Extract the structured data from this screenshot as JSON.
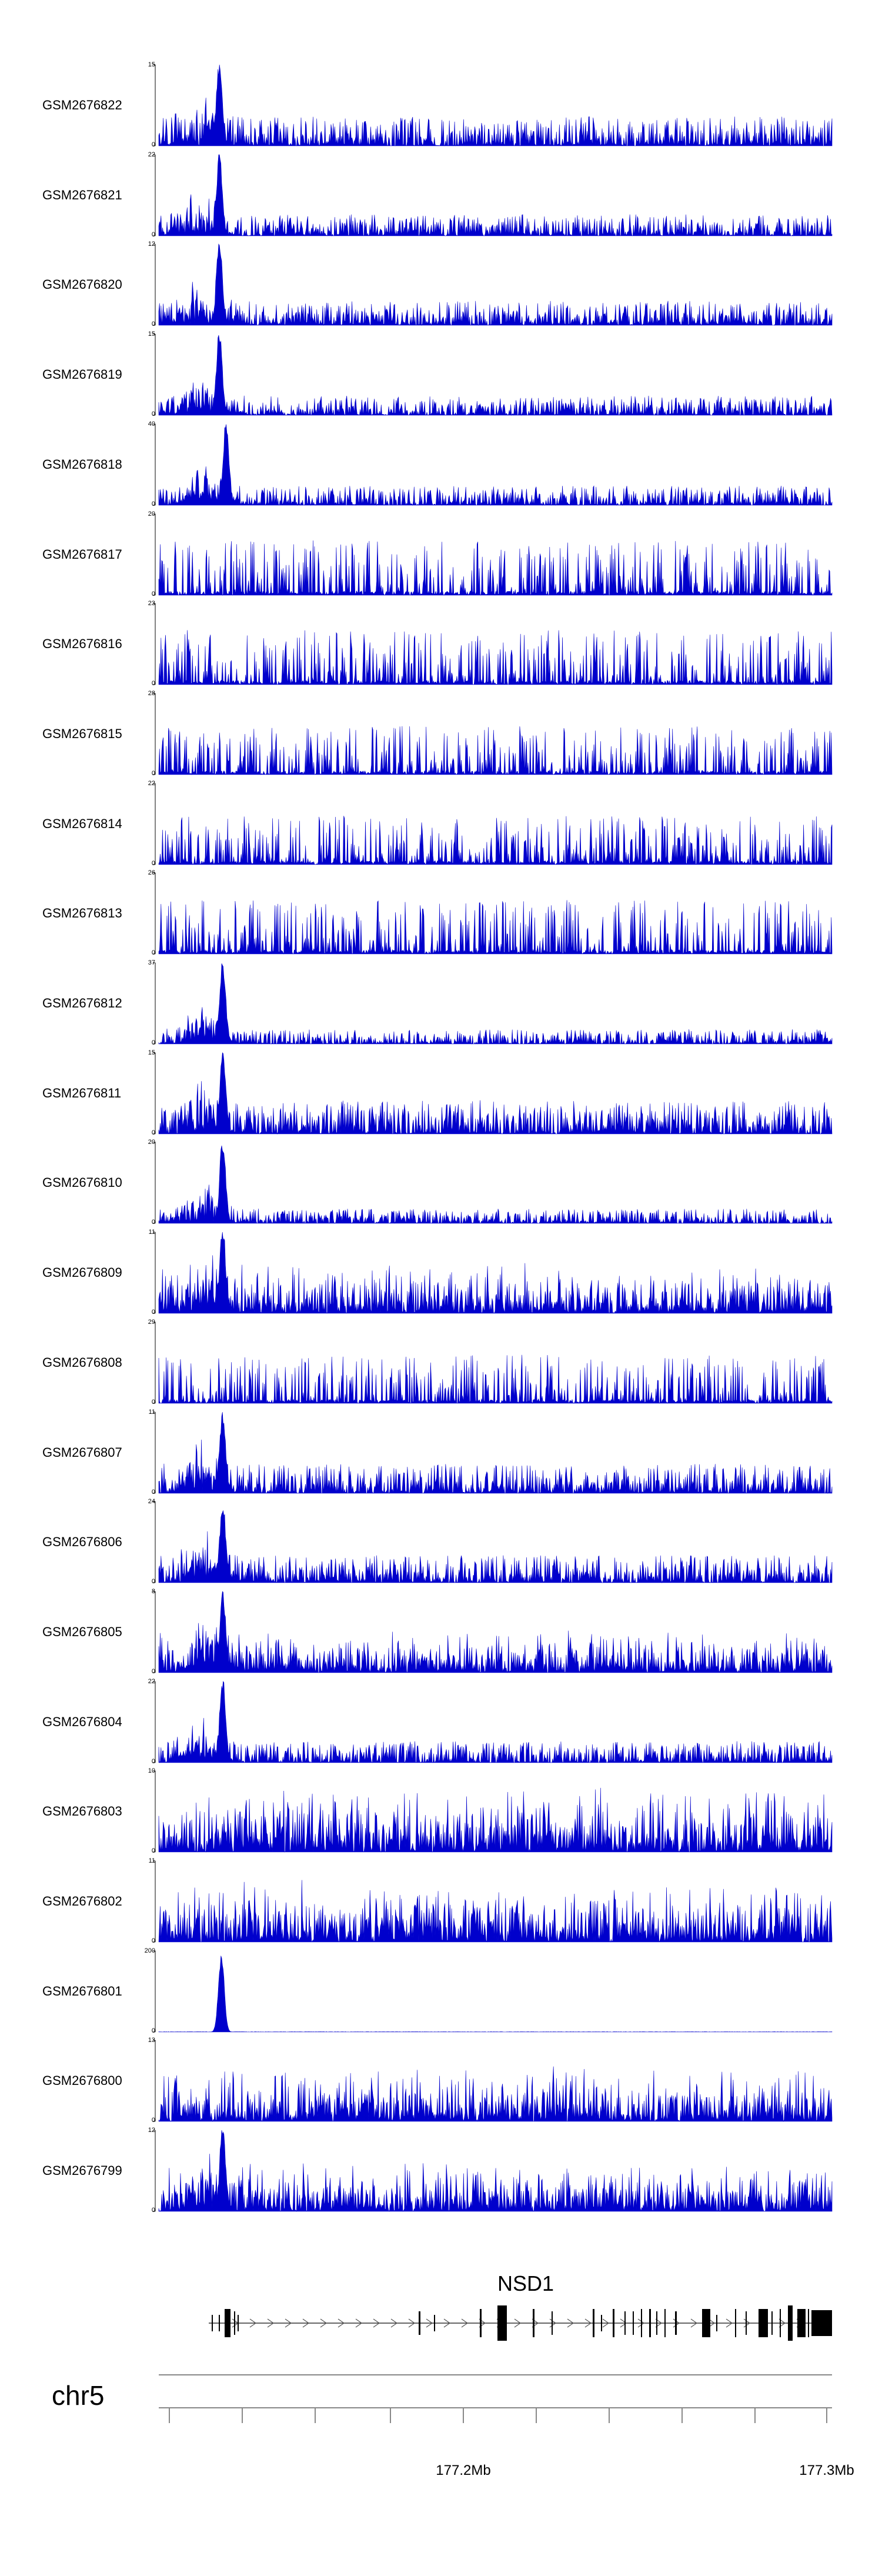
{
  "chart_data": {
    "type": "area",
    "chromosome": "chr5",
    "gene": "NSD1",
    "tick_labels": [
      "177.2Mb",
      "177.3Mb"
    ],
    "series": [
      {
        "name": "GSM2676822",
        "ylim": [
          0,
          15
        ],
        "peak_at": 0.09,
        "background": 0.3,
        "style": "peaky"
      },
      {
        "name": "GSM2676821",
        "ylim": [
          0,
          22
        ],
        "peak_at": 0.09,
        "background": 0.22,
        "style": "peaky"
      },
      {
        "name": "GSM2676820",
        "ylim": [
          0,
          12
        ],
        "peak_at": 0.09,
        "background": 0.25,
        "style": "peaky"
      },
      {
        "name": "GSM2676819",
        "ylim": [
          0,
          15
        ],
        "peak_at": 0.09,
        "background": 0.2,
        "style": "peaky"
      },
      {
        "name": "GSM2676818",
        "ylim": [
          0,
          40
        ],
        "peak_at": 0.1,
        "background": 0.2,
        "style": "peaky"
      },
      {
        "name": "GSM2676817",
        "ylim": [
          0,
          20
        ],
        "peak_at": null,
        "background": 0.45,
        "style": "sparse"
      },
      {
        "name": "GSM2676816",
        "ylim": [
          0,
          23
        ],
        "peak_at": null,
        "background": 0.45,
        "style": "sparse"
      },
      {
        "name": "GSM2676815",
        "ylim": [
          0,
          28
        ],
        "peak_at": null,
        "background": 0.4,
        "style": "sparse"
      },
      {
        "name": "GSM2676814",
        "ylim": [
          0,
          22
        ],
        "peak_at": null,
        "background": 0.4,
        "style": "sparse"
      },
      {
        "name": "GSM2676813",
        "ylim": [
          0,
          26
        ],
        "peak_at": null,
        "background": 0.45,
        "style": "sparse"
      },
      {
        "name": "GSM2676812",
        "ylim": [
          0,
          37
        ],
        "peak_at": 0.095,
        "background": 0.15,
        "style": "peaky"
      },
      {
        "name": "GSM2676811",
        "ylim": [
          0,
          15
        ],
        "peak_at": 0.095,
        "background": 0.35,
        "style": "peaky"
      },
      {
        "name": "GSM2676810",
        "ylim": [
          0,
          20
        ],
        "peak_at": 0.095,
        "background": 0.15,
        "style": "peaky"
      },
      {
        "name": "GSM2676809",
        "ylim": [
          0,
          11
        ],
        "peak_at": 0.095,
        "background": 0.45,
        "style": "dense"
      },
      {
        "name": "GSM2676808",
        "ylim": [
          0,
          29
        ],
        "peak_at": null,
        "background": 0.4,
        "style": "sparse"
      },
      {
        "name": "GSM2676807",
        "ylim": [
          0,
          11
        ],
        "peak_at": 0.095,
        "background": 0.3,
        "style": "peaky"
      },
      {
        "name": "GSM2676806",
        "ylim": [
          0,
          24
        ],
        "peak_at": 0.095,
        "background": 0.28,
        "style": "peaky"
      },
      {
        "name": "GSM2676805",
        "ylim": [
          0,
          8
        ],
        "peak_at": 0.095,
        "background": 0.38,
        "style": "dense"
      },
      {
        "name": "GSM2676804",
        "ylim": [
          0,
          22
        ],
        "peak_at": 0.095,
        "background": 0.22,
        "style": "peaky"
      },
      {
        "name": "GSM2676803",
        "ylim": [
          0,
          10
        ],
        "peak_at": null,
        "background": 0.6,
        "style": "dense"
      },
      {
        "name": "GSM2676802",
        "ylim": [
          0,
          11
        ],
        "peak_at": null,
        "background": 0.55,
        "style": "dense"
      },
      {
        "name": "GSM2676801",
        "ylim": [
          0,
          200
        ],
        "peak_at": 0.093,
        "background": 0.01,
        "style": "single"
      },
      {
        "name": "GSM2676800",
        "ylim": [
          0,
          13
        ],
        "peak_at": null,
        "background": 0.5,
        "style": "dense"
      },
      {
        "name": "GSM2676799",
        "ylim": [
          0,
          12
        ],
        "peak_at": 0.095,
        "background": 0.45,
        "style": "dense"
      }
    ]
  },
  "colors": {
    "signal": "#0000cc",
    "axis": "#000000",
    "gene_line": "#555555",
    "chrom_line": "#888888"
  }
}
